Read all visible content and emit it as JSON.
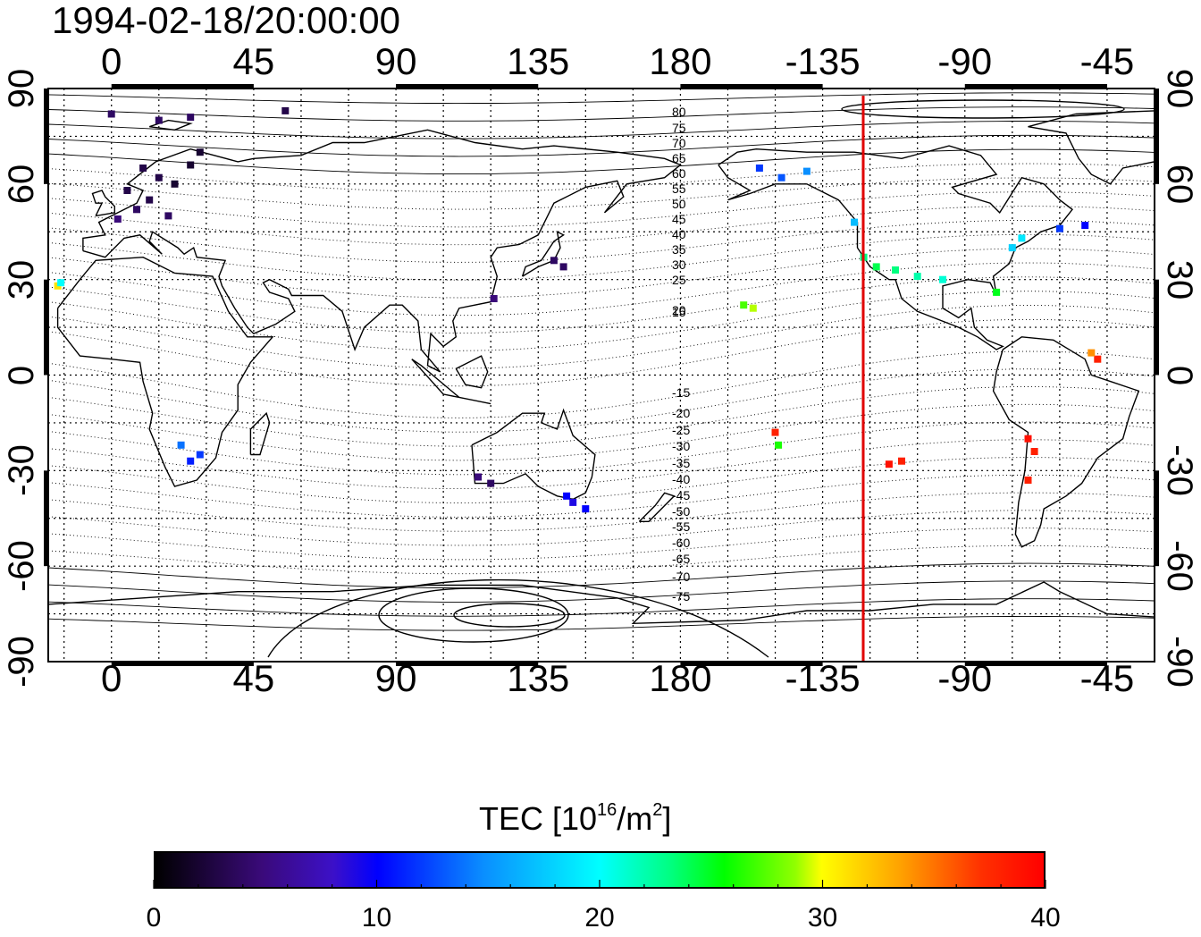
{
  "title": "1994-02-18/20:00:00",
  "x_axis": {
    "ticks": [
      "0",
      "45",
      "90",
      "135",
      "180",
      "-135",
      "-90",
      "-45"
    ]
  },
  "y_axis": {
    "ticks": [
      "90",
      "60",
      "30",
      "0",
      "-30",
      "-60",
      "-90"
    ]
  },
  "map": {
    "type": "world-map",
    "projection": "equirectangular",
    "lon_range_east": [
      -20,
      330
    ],
    "lat_range": [
      -90,
      90
    ],
    "grid": "dotted",
    "magnetic_latitude_labels_north": [
      "80",
      "75",
      "70",
      "65",
      "60",
      "55",
      "50",
      "45",
      "40",
      "35",
      "30",
      "25",
      "20",
      "15"
    ],
    "magnetic_latitude_labels_south": [
      "-15",
      "-20",
      "-25",
      "-30",
      "-35",
      "-40",
      "-45",
      "-50",
      "-55",
      "-60",
      "-65",
      "-70",
      "-75"
    ],
    "marker_line_lon": -120,
    "marker_line_color": "#e00000"
  },
  "colorbar": {
    "label": "TEC  [10",
    "label_sup": "16",
    "label_mid": "/m",
    "label_sup2": "2",
    "label_end": "]",
    "ticks": [
      "0",
      "10",
      "20",
      "30",
      "40"
    ],
    "range": [
      0,
      40
    ],
    "colormap": [
      "#000000",
      "#3a0a7a",
      "#0000ff",
      "#00ffff",
      "#00ff00",
      "#ffff00",
      "#ff0000"
    ]
  },
  "chart_data": {
    "type": "scatter",
    "title": "1994-02-18/20:00:00",
    "xlabel": "",
    "ylabel": "",
    "xlim": [
      -20,
      330
    ],
    "ylim": [
      -90,
      90
    ],
    "value_label": "TEC  [10^16/m^2]",
    "value_range": [
      0,
      40
    ],
    "points": [
      {
        "lon": 10,
        "lat": 65,
        "tec": 3
      },
      {
        "lon": 15,
        "lat": 62,
        "tec": 3
      },
      {
        "lon": 20,
        "lat": 60,
        "tec": 2
      },
      {
        "lon": 5,
        "lat": 58,
        "tec": 3
      },
      {
        "lon": 25,
        "lat": 66,
        "tec": 2
      },
      {
        "lon": 12,
        "lat": 55,
        "tec": 3
      },
      {
        "lon": 8,
        "lat": 52,
        "tec": 4
      },
      {
        "lon": 18,
        "lat": 50,
        "tec": 4
      },
      {
        "lon": 2,
        "lat": 49,
        "tec": 5
      },
      {
        "lon": 28,
        "lat": 70,
        "tec": 2
      },
      {
        "lon": 0,
        "lat": 82,
        "tec": 4
      },
      {
        "lon": 15,
        "lat": 80,
        "tec": 4
      },
      {
        "lon": 25,
        "lat": 81,
        "tec": 4
      },
      {
        "lon": 55,
        "lat": 83,
        "tec": 3
      },
      {
        "lon": 140,
        "lat": 36,
        "tec": 4
      },
      {
        "lon": 143,
        "lat": 34,
        "tec": 4
      },
      {
        "lon": 121,
        "lat": 24,
        "tec": 5
      },
      {
        "lon": 25,
        "lat": -27,
        "tec": 11
      },
      {
        "lon": 28,
        "lat": -25,
        "tec": 12
      },
      {
        "lon": 22,
        "lat": -22,
        "tec": 14
      },
      {
        "lon": 116,
        "lat": -32,
        "tec": 5
      },
      {
        "lon": 120,
        "lat": -34,
        "tec": 4
      },
      {
        "lon": 146,
        "lat": -40,
        "tec": 9
      },
      {
        "lon": 150,
        "lat": -42,
        "tec": 10
      },
      {
        "lon": 144,
        "lat": -38,
        "tec": 10
      },
      {
        "lon": -17,
        "lat": 28,
        "tec": 31
      },
      {
        "lon": -16,
        "lat": 29,
        "tec": 20
      },
      {
        "lon": -160,
        "lat": 22,
        "tec": 27
      },
      {
        "lon": -157,
        "lat": 21,
        "tec": 29
      },
      {
        "lon": -150,
        "lat": -18,
        "tec": 38
      },
      {
        "lon": -149,
        "lat": -22,
        "tec": 26
      },
      {
        "lon": -155,
        "lat": 65,
        "tec": 12
      },
      {
        "lon": -148,
        "lat": 62,
        "tec": 13
      },
      {
        "lon": -140,
        "lat": 64,
        "tec": 15
      },
      {
        "lon": -125,
        "lat": 48,
        "tec": 17
      },
      {
        "lon": -122,
        "lat": 37,
        "tec": 23
      },
      {
        "lon": -118,
        "lat": 34,
        "tec": 24
      },
      {
        "lon": -112,
        "lat": 33,
        "tec": 23
      },
      {
        "lon": -105,
        "lat": 31,
        "tec": 22
      },
      {
        "lon": -97,
        "lat": 30,
        "tec": 21
      },
      {
        "lon": -110,
        "lat": -27,
        "tec": 38
      },
      {
        "lon": -114,
        "lat": -28,
        "tec": 39
      },
      {
        "lon": -75,
        "lat": 40,
        "tec": 18
      },
      {
        "lon": -72,
        "lat": 43,
        "tec": 19
      },
      {
        "lon": -80,
        "lat": 26,
        "tec": 25
      },
      {
        "lon": -60,
        "lat": 46,
        "tec": 12
      },
      {
        "lon": -52,
        "lat": 47,
        "tec": 10
      },
      {
        "lon": -48,
        "lat": 5,
        "tec": 38
      },
      {
        "lon": -50,
        "lat": 7,
        "tec": 34
      },
      {
        "lon": -70,
        "lat": -20,
        "tec": 39
      },
      {
        "lon": -68,
        "lat": -24,
        "tec": 38
      },
      {
        "lon": -70,
        "lat": -33,
        "tec": 38
      }
    ]
  }
}
